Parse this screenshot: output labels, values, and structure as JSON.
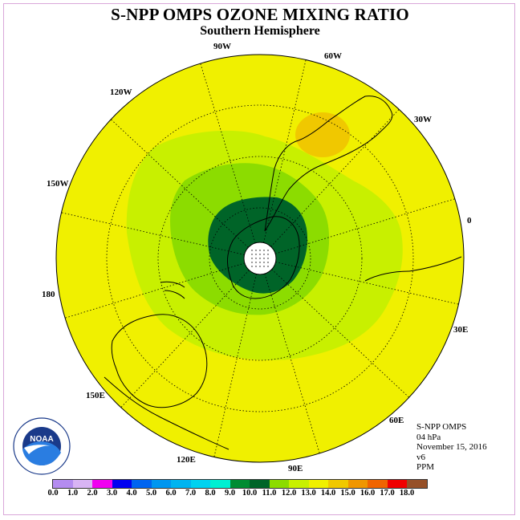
{
  "title": "S-NPP OMPS OZONE MIXING RATIO",
  "subtitle": "Southern Hemisphere",
  "info": {
    "instrument": "S-NPP OMPS",
    "level": "04 hPa",
    "date": "November 15, 2016",
    "version": "v6",
    "units": "PPM"
  },
  "logo": {
    "name": "NOAA",
    "icon": "noaa-logo"
  },
  "longitude_labels": [
    "90W",
    "60W",
    "30W",
    "0",
    "30E",
    "60E",
    "90E",
    "120E",
    "150E",
    "180",
    "150W",
    "120W"
  ],
  "colorbar": {
    "ticks": [
      "0.0",
      "1.0",
      "2.0",
      "3.0",
      "4.0",
      "5.0",
      "6.0",
      "7.0",
      "8.0",
      "9.0",
      "10.0",
      "11.0",
      "12.0",
      "13.0",
      "14.0",
      "15.0",
      "16.0",
      "17.0",
      "18.0"
    ],
    "colors": [
      "#b48cf0",
      "#d8b4f4",
      "#f000f0",
      "#0000f0",
      "#0064f0",
      "#0096f0",
      "#00b4f0",
      "#00d2f0",
      "#00f0d2",
      "#008c32",
      "#006428",
      "#8cdc00",
      "#c8f000",
      "#f0f000",
      "#f0c800",
      "#f09600",
      "#f06400",
      "#f00000",
      "#965028"
    ]
  },
  "field_colors": {
    "background_level": "#f0f000",
    "outer_ring": "#c8f000",
    "middle_ring": "#8cdc00",
    "polar_core": "#006428",
    "high_patch": "#f0c800"
  }
}
